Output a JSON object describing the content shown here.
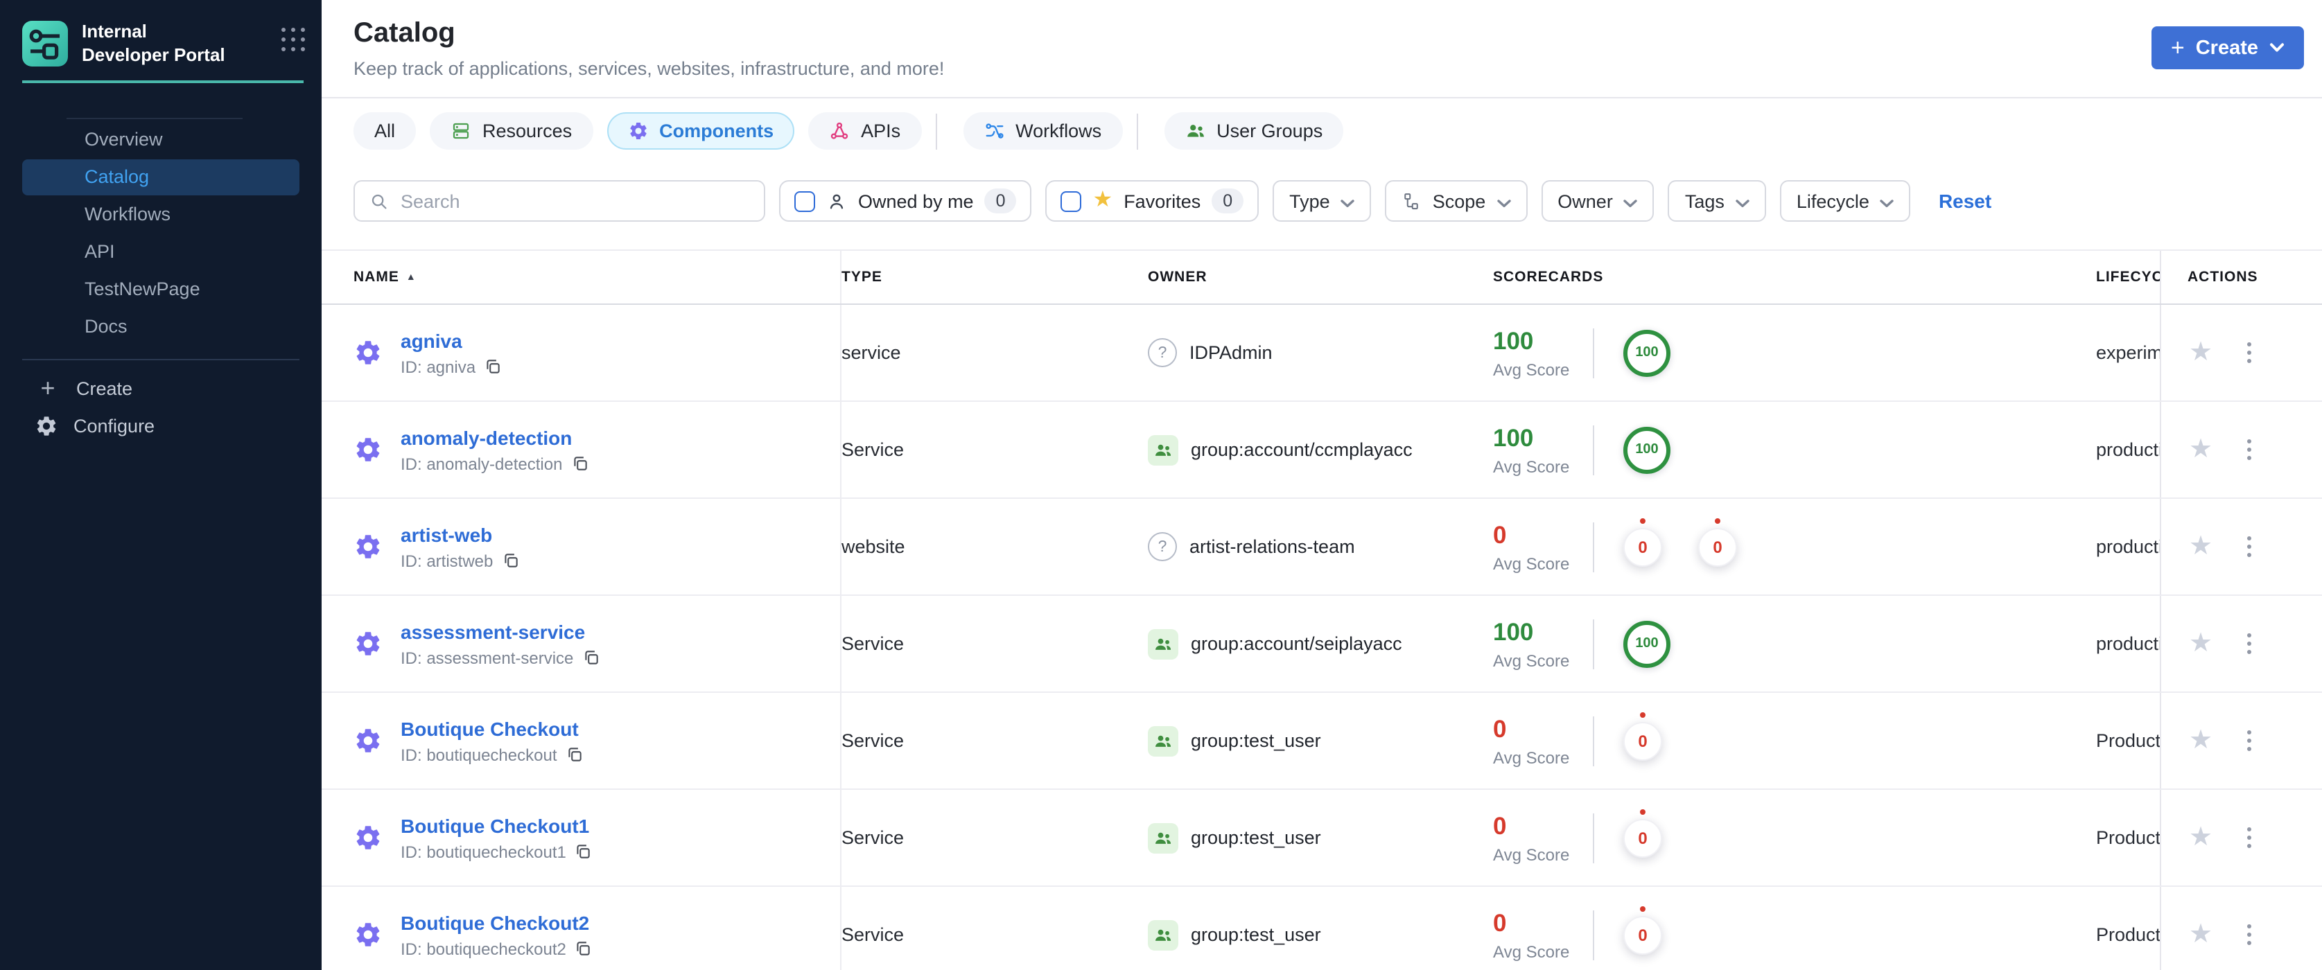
{
  "sidebar": {
    "brand_title": "Internal Developer Portal",
    "nav": [
      {
        "label": "Overview",
        "active": false
      },
      {
        "label": "Catalog",
        "active": true
      },
      {
        "label": "Workflows",
        "active": false
      },
      {
        "label": "API",
        "active": false
      },
      {
        "label": "TestNewPage",
        "active": false
      },
      {
        "label": "Docs",
        "active": false
      }
    ],
    "create_label": "Create",
    "configure_label": "Configure"
  },
  "header": {
    "title": "Catalog",
    "subtitle": "Keep track of applications, services, websites, infrastructure, and more!",
    "create_button_label": "Create"
  },
  "tabs": [
    {
      "label": "All",
      "icon": null,
      "active": false,
      "divider_before": false
    },
    {
      "label": "Resources",
      "icon": "resources",
      "active": false,
      "divider_before": false
    },
    {
      "label": "Components",
      "icon": "gear-purple",
      "active": true,
      "divider_before": false
    },
    {
      "label": "APIs",
      "icon": "apis",
      "active": false,
      "divider_before": false
    },
    {
      "label": "Workflows",
      "icon": "workflows",
      "active": false,
      "divider_before": true
    },
    {
      "label": "User Groups",
      "icon": "user-groups",
      "active": false,
      "divider_before": true
    }
  ],
  "filters": {
    "search_placeholder": "Search",
    "owned_by_me": {
      "label": "Owned by me",
      "count": "0"
    },
    "favorites": {
      "label": "Favorites",
      "count": "0"
    },
    "dropdowns": [
      {
        "label": "Type",
        "icon": null
      },
      {
        "label": "Scope",
        "icon": "scope"
      },
      {
        "label": "Owner",
        "icon": null
      },
      {
        "label": "Tags",
        "icon": null
      },
      {
        "label": "Lifecycle",
        "icon": null
      }
    ],
    "reset_label": "Reset"
  },
  "table": {
    "columns": [
      "NAME",
      "TYPE",
      "OWNER",
      "SCORECARDS",
      "LIFECYCLE",
      "ACTIONS"
    ],
    "avg_score_label": "Avg Score",
    "rows": [
      {
        "name": "agniva",
        "id": "ID: agniva",
        "type": "service",
        "owner": {
          "icon": "help",
          "label": "IDPAdmin"
        },
        "score": {
          "value": "100",
          "state": "good"
        },
        "badges": [
          {
            "value": "100",
            "state": "good"
          }
        ],
        "lifecycle": "experimental"
      },
      {
        "name": "anomaly-detection",
        "id": "ID: anomaly-detection",
        "type": "Service",
        "owner": {
          "icon": "group",
          "label": "group:account/ccmplayacc"
        },
        "score": {
          "value": "100",
          "state": "good"
        },
        "badges": [
          {
            "value": "100",
            "state": "good"
          }
        ],
        "lifecycle": "production"
      },
      {
        "name": "artist-web",
        "id": "ID: artistweb",
        "type": "website",
        "owner": {
          "icon": "help",
          "label": "artist-relations-team"
        },
        "score": {
          "value": "0",
          "state": "bad"
        },
        "badges": [
          {
            "value": "0",
            "state": "bad"
          },
          {
            "value": "0",
            "state": "bad"
          }
        ],
        "lifecycle": "production"
      },
      {
        "name": "assessment-service",
        "id": "ID: assessment-service",
        "type": "Service",
        "owner": {
          "icon": "group",
          "label": "group:account/seiplayacc"
        },
        "score": {
          "value": "100",
          "state": "good"
        },
        "badges": [
          {
            "value": "100",
            "state": "good"
          }
        ],
        "lifecycle": "production"
      },
      {
        "name": "Boutique Checkout",
        "id": "ID: boutiquecheckout",
        "type": "Service",
        "owner": {
          "icon": "group",
          "label": "group:test_user"
        },
        "score": {
          "value": "0",
          "state": "bad"
        },
        "badges": [
          {
            "value": "0",
            "state": "bad"
          }
        ],
        "lifecycle": "Production"
      },
      {
        "name": "Boutique Checkout1",
        "id": "ID: boutiquecheckout1",
        "type": "Service",
        "owner": {
          "icon": "group",
          "label": "group:test_user"
        },
        "score": {
          "value": "0",
          "state": "bad"
        },
        "badges": [
          {
            "value": "0",
            "state": "bad"
          }
        ],
        "lifecycle": "Production"
      },
      {
        "name": "Boutique Checkout2",
        "id": "ID: boutiquecheckout2",
        "type": "Service",
        "owner": {
          "icon": "group",
          "label": "group:test_user"
        },
        "score": {
          "value": "0",
          "state": "bad"
        },
        "badges": [
          {
            "value": "0",
            "state": "bad"
          }
        ],
        "lifecycle": "Production"
      }
    ]
  },
  "colors": {
    "sidebar_bg": "#101b2d",
    "sidebar_active_bg": "#1c3b61",
    "sidebar_active_text": "#41a3f2",
    "brand_teal": "#49b8ab",
    "accent_blue": "#3e70d5",
    "link_blue": "#2e6cd6",
    "tab_active_bg": "#e7f7fe",
    "tab_active_border": "#ade0f6",
    "tab_active_text": "#2b7cd6",
    "score_green": "#2e8b3d",
    "score_red": "#d63a2c",
    "star_yellow": "#f2c13e",
    "gear_purple": "#7a6ff0",
    "resources_green": "#4b9e4f",
    "apis_pink": "#e13c7f",
    "workflows_blue": "#2c86e8",
    "groups_green": "#3f8e3f"
  }
}
